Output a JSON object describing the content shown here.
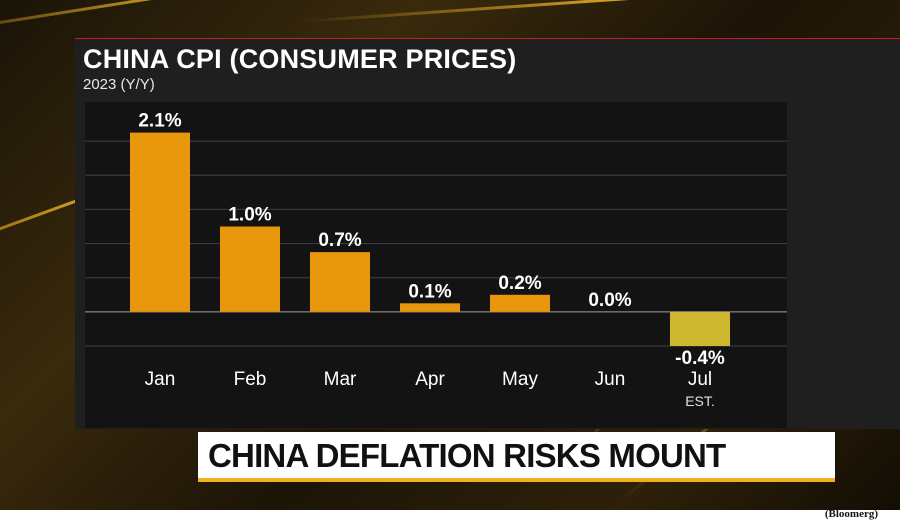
{
  "header": {
    "title": "CHINA CPI (CONSUMER PRICES)",
    "subtitle": "2023 (Y/Y)"
  },
  "headline": "CHINA DEFLATION RISKS MOUNT",
  "source": "(Bloomerg)",
  "colors": {
    "bar_positive": "#e8960c",
    "bar_negative": "#cdb72e",
    "accent_line": "#c21f1f",
    "headline_underline": "#f2b01e"
  },
  "chart_data": {
    "type": "bar",
    "title": "CHINA CPI (CONSUMER PRICES)",
    "subtitle": "2023 (Y/Y)",
    "categories": [
      "Jan",
      "Feb",
      "Mar",
      "Apr",
      "May",
      "Jun",
      "Jul"
    ],
    "category_notes": [
      "",
      "",
      "",
      "",
      "",
      "",
      "EST."
    ],
    "values": [
      2.1,
      1.0,
      0.7,
      0.1,
      0.2,
      0.0,
      -0.4
    ],
    "value_labels": [
      "2.1%",
      "1.0%",
      "0.7%",
      "0.1%",
      "0.2%",
      "0.0%",
      "-0.4%"
    ],
    "unit": "%",
    "ylim": [
      -0.4,
      2.4
    ],
    "gridlines": [
      -0.4,
      0,
      0.4,
      0.8,
      1.2,
      1.6,
      2.0
    ],
    "grid": true,
    "legend": "none"
  }
}
